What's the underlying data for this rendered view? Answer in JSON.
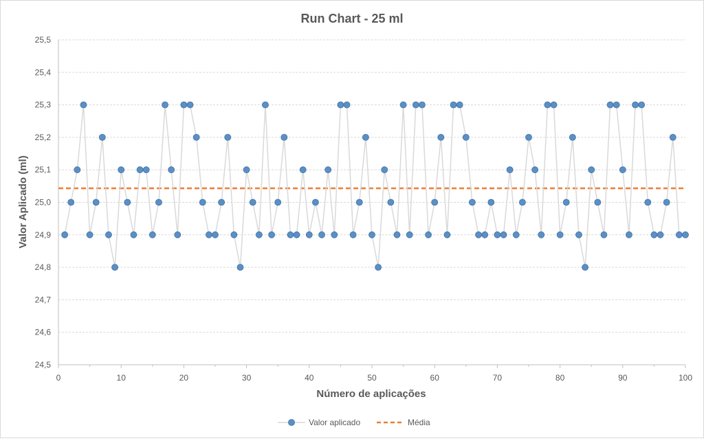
{
  "chart_data": {
    "type": "line",
    "title": "Run Chart - 25 ml",
    "xlabel": "Número de aplicações",
    "ylabel": "Valor Aplicado (ml)",
    "xlim": [
      0,
      100
    ],
    "ylim": [
      24.5,
      25.5
    ],
    "x_ticks": [
      "0",
      "10",
      "20",
      "30",
      "40",
      "50",
      "60",
      "70",
      "80",
      "90",
      "100"
    ],
    "y_ticks": [
      "24,5",
      "24,6",
      "24,7",
      "24,8",
      "24,9",
      "25,0",
      "25,1",
      "25,2",
      "25,3",
      "25,4",
      "25,5"
    ],
    "grid": "horizontal",
    "legend_position": "bottom",
    "series": [
      {
        "name": "Valor aplicado",
        "marker": "circle",
        "line_color": "#d9d9d9",
        "marker_color": "#5b8fc7",
        "marker_edge": "#41719c",
        "x": [
          1,
          2,
          3,
          4,
          5,
          6,
          7,
          8,
          9,
          10,
          11,
          12,
          13,
          14,
          15,
          16,
          17,
          18,
          19,
          20,
          21,
          22,
          23,
          24,
          25,
          26,
          27,
          28,
          29,
          30,
          31,
          32,
          33,
          34,
          35,
          36,
          37,
          38,
          39,
          40,
          41,
          42,
          43,
          44,
          45,
          46,
          47,
          48,
          49,
          50,
          51,
          52,
          53,
          54,
          55,
          56,
          57,
          58,
          59,
          60,
          61,
          62,
          63,
          64,
          65,
          66,
          67,
          68,
          69,
          70,
          71,
          72,
          73,
          74,
          75,
          76,
          77,
          78,
          79,
          80,
          81,
          82,
          83,
          84,
          85,
          86,
          87,
          88,
          89,
          90,
          91,
          92,
          93,
          94,
          95,
          96,
          97,
          98,
          99,
          100
        ],
        "values": [
          24.9,
          25.0,
          25.1,
          25.3,
          24.9,
          25.0,
          25.2,
          24.9,
          24.8,
          25.1,
          25.0,
          24.9,
          25.1,
          25.1,
          24.9,
          25.0,
          25.3,
          25.1,
          24.9,
          25.3,
          25.3,
          25.2,
          25.0,
          24.9,
          24.9,
          25.0,
          25.2,
          24.9,
          24.8,
          25.1,
          25.0,
          24.9,
          25.3,
          24.9,
          25.0,
          25.2,
          24.9,
          24.9,
          25.1,
          24.9,
          25.0,
          24.9,
          25.1,
          24.9,
          25.3,
          25.3,
          24.9,
          25.0,
          25.2,
          24.9,
          24.8,
          25.1,
          25.0,
          24.9,
          25.3,
          24.9,
          25.3,
          25.3,
          24.9,
          25.0,
          25.2,
          24.9,
          25.3,
          25.3,
          25.2,
          25.0,
          24.9,
          24.9,
          25.0,
          24.9,
          24.9,
          25.1,
          24.9,
          25.0,
          25.2,
          25.1,
          24.9,
          25.3,
          25.3,
          24.9,
          25.0,
          25.2,
          24.9,
          24.8,
          25.1,
          25.0,
          24.9,
          25.3,
          25.3,
          25.1,
          24.9,
          25.3,
          25.3,
          25.0,
          24.9,
          24.9,
          25.0,
          25.2,
          24.9,
          24.9
        ]
      },
      {
        "name": "Média",
        "style": "dashed",
        "line_color": "#ed7d31",
        "value": 25.043
      }
    ]
  }
}
